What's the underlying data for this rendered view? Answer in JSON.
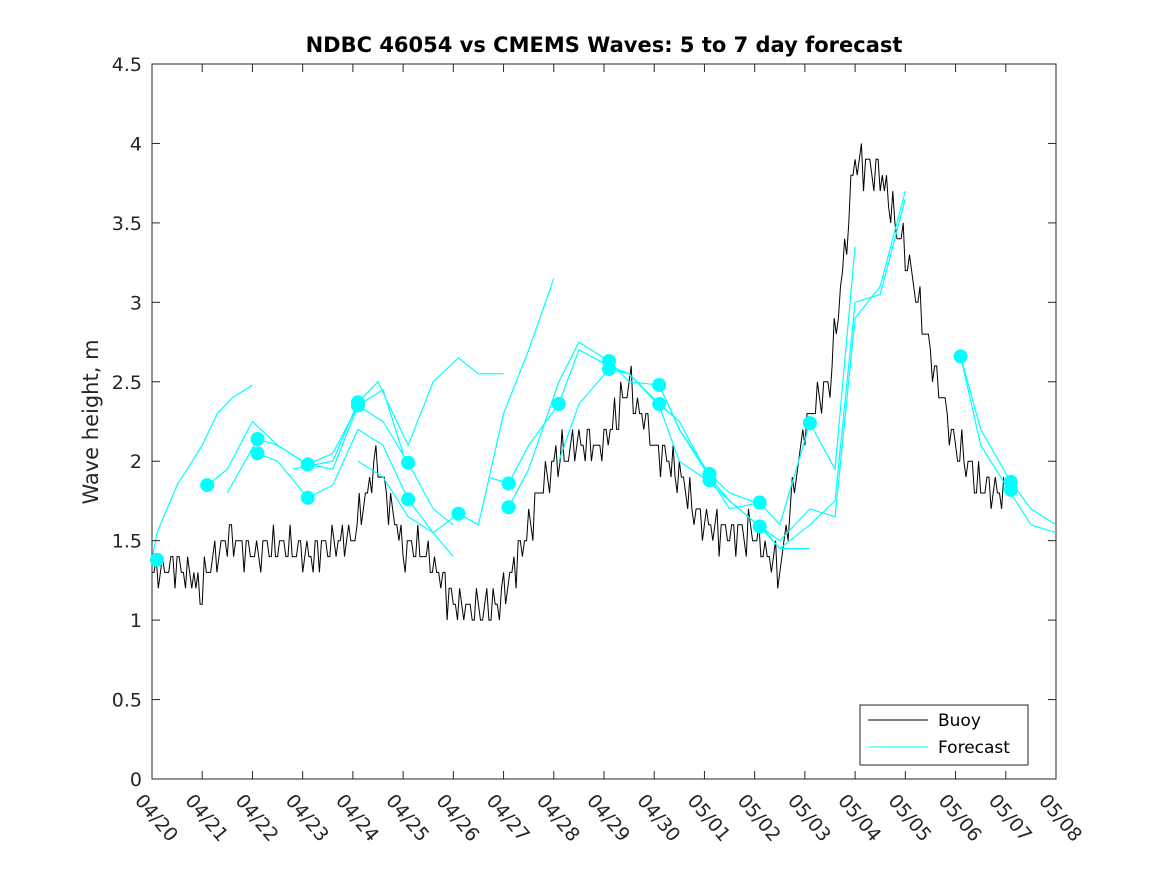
{
  "chart_data": {
    "type": "line",
    "title": "NDBC 46054 vs CMEMS Waves: 5 to 7 day forecast",
    "xlabel": "",
    "ylabel": "Wave height, m",
    "x_ticks": [
      "04/20",
      "04/21",
      "04/22",
      "04/23",
      "04/24",
      "04/25",
      "04/26",
      "04/27",
      "04/28",
      "04/29",
      "04/30",
      "05/01",
      "05/02",
      "05/03",
      "05/04",
      "05/05",
      "05/06",
      "05/07",
      "05/08"
    ],
    "x_range_days": [
      0,
      18
    ],
    "ylim": [
      0,
      4.5
    ],
    "y_ticks": [
      0,
      0.5,
      1,
      1.5,
      2,
      2.5,
      3,
      3.5,
      4,
      4.5
    ],
    "y_tick_labels": [
      "0",
      "0.5",
      "1",
      "1.5",
      "2",
      "2.5",
      "3",
      "3.5",
      "4",
      "4.5"
    ],
    "grid": false,
    "legend": {
      "position": "bottom-right",
      "entries": [
        "Buoy",
        "Forecast"
      ]
    },
    "colors": {
      "buoy": "#000000",
      "forecast": "#00ffff"
    },
    "series": [
      {
        "name": "Buoy",
        "x": [
          0,
          0.5,
          1,
          1.5,
          2,
          2.5,
          3,
          3.5,
          4,
          4.5,
          5,
          5.5,
          6,
          6.5,
          7,
          7.5,
          8,
          8.5,
          9,
          9.5,
          10,
          10.5,
          11,
          11.5,
          12,
          12.5,
          13,
          13.5,
          14,
          14.5,
          15,
          15.5,
          16,
          16.5,
          17,
          17.5,
          18
        ],
        "values": [
          1.3,
          1.35,
          1.2,
          1.55,
          1.4,
          1.5,
          1.4,
          1.45,
          1.55,
          2.0,
          1.45,
          1.4,
          1.1,
          1.05,
          1.15,
          1.6,
          2.0,
          2.1,
          2.1,
          2.5,
          2.1,
          1.9,
          1.6,
          1.55,
          1.55,
          1.3,
          2.2,
          2.5,
          3.9,
          3.8,
          3.3,
          2.7,
          2.1,
          1.85,
          1.8,
          null,
          null
        ]
      }
    ],
    "forecast_runs": [
      {
        "x": [
          0,
          0.1,
          0.5,
          1,
          1.3,
          1.6,
          2.0
        ],
        "values": [
          1.38,
          1.55,
          1.85,
          2.1,
          2.3,
          2.4,
          2.48
        ]
      },
      {
        "x": [
          1.1,
          1.5,
          2.0,
          2.5,
          3.1,
          3.6,
          4.1,
          4.6,
          5.0
        ],
        "values": [
          1.85,
          1.95,
          2.25,
          2.1,
          1.98,
          1.95,
          2.35,
          2.45,
          2.05
        ]
      },
      {
        "x": [
          1.5,
          2.1,
          2.5,
          3.1,
          3.6,
          4.1,
          4.6,
          5.1,
          5.6,
          6.0
        ],
        "values": [
          1.8,
          2.14,
          2.1,
          1.98,
          2.05,
          2.35,
          2.25,
          1.99,
          1.7,
          1.6
        ]
      },
      {
        "x": [
          2.1,
          2.5,
          3.1,
          3.6,
          4.1,
          4.6,
          5.1,
          5.6,
          6.0
        ],
        "values": [
          2.05,
          2.0,
          1.77,
          1.85,
          2.2,
          2.1,
          1.76,
          1.55,
          1.4
        ]
      },
      {
        "x": [
          2.8,
          3.1,
          3.6,
          4.1,
          4.5,
          5.1,
          5.6,
          6.1,
          6.5,
          7.0
        ],
        "values": [
          1.95,
          1.97,
          2.0,
          2.37,
          2.5,
          2.1,
          2.5,
          2.65,
          2.55,
          2.55
        ]
      },
      {
        "x": [
          4.1,
          4.6,
          5.1,
          5.6,
          6.1,
          6.5,
          7.0,
          7.5,
          8.0
        ],
        "values": [
          2.0,
          1.9,
          1.65,
          1.55,
          1.67,
          1.6,
          2.3,
          2.7,
          3.15
        ]
      },
      {
        "x": [
          6.7,
          7.1,
          7.5,
          8.1,
          8.5,
          9.1,
          9.5,
          10.1,
          10.5,
          11.1
        ],
        "values": [
          1.9,
          1.86,
          2.1,
          2.36,
          2.7,
          2.6,
          2.55,
          2.36,
          2.25,
          1.9
        ]
      },
      {
        "x": [
          7.1,
          7.5,
          8.1,
          8.5,
          9.1,
          9.5,
          10.1,
          10.5,
          11.1,
          11.5,
          12.1
        ],
        "values": [
          1.71,
          1.95,
          2.5,
          2.75,
          2.63,
          2.5,
          2.48,
          2.2,
          1.92,
          1.8,
          1.73
        ]
      },
      {
        "x": [
          8.1,
          8.5,
          9.1,
          9.5,
          10.1,
          10.5,
          11.1,
          11.5,
          12.1,
          12.5,
          13.1
        ],
        "values": [
          2.0,
          2.36,
          2.58,
          2.55,
          2.35,
          2.0,
          1.87,
          1.75,
          1.59,
          1.45,
          1.45
        ]
      },
      {
        "x": [
          10.1,
          10.5,
          11.1,
          11.5,
          12.1,
          12.5,
          13.1,
          13.6,
          14.0
        ],
        "values": [
          2.48,
          2.2,
          1.9,
          1.7,
          1.74,
          1.6,
          2.24,
          1.95,
          3.35
        ]
      },
      {
        "x": [
          11.1,
          11.5,
          12.1,
          12.5,
          13.1,
          13.6,
          14.0,
          14.5,
          15.0
        ],
        "values": [
          1.9,
          1.75,
          1.59,
          1.5,
          1.7,
          1.65,
          2.9,
          3.1,
          3.7
        ]
      },
      {
        "x": [
          12.1,
          12.5,
          13.1,
          13.6,
          14.0,
          14.5,
          15.0
        ],
        "values": [
          1.6,
          1.45,
          1.6,
          1.75,
          3.0,
          3.05,
          3.65
        ]
      },
      {
        "x": [
          16.1,
          16.5,
          17.1,
          17.5,
          18.0
        ],
        "values": [
          2.66,
          2.2,
          1.87,
          1.7,
          1.6
        ]
      },
      {
        "x": [
          16.1,
          16.5,
          17.1,
          17.5,
          18.0
        ],
        "values": [
          2.66,
          2.1,
          1.8,
          1.6,
          1.55
        ]
      }
    ],
    "forecast_markers": {
      "x": [
        0.1,
        1.1,
        2.1,
        2.1,
        3.1,
        3.1,
        4.1,
        4.1,
        5.1,
        5.1,
        6.1,
        7.1,
        7.1,
        8.1,
        9.1,
        9.1,
        10.1,
        10.1,
        11.1,
        11.1,
        12.1,
        12.1,
        13.1,
        16.1,
        17.1,
        17.1
      ],
      "values": [
        1.38,
        1.85,
        2.14,
        2.05,
        1.98,
        1.77,
        2.37,
        2.35,
        1.99,
        1.76,
        1.67,
        1.86,
        1.71,
        2.36,
        2.63,
        2.58,
        2.48,
        2.36,
        1.92,
        1.88,
        1.74,
        1.59,
        2.24,
        2.66,
        1.87,
        1.82
      ]
    }
  }
}
